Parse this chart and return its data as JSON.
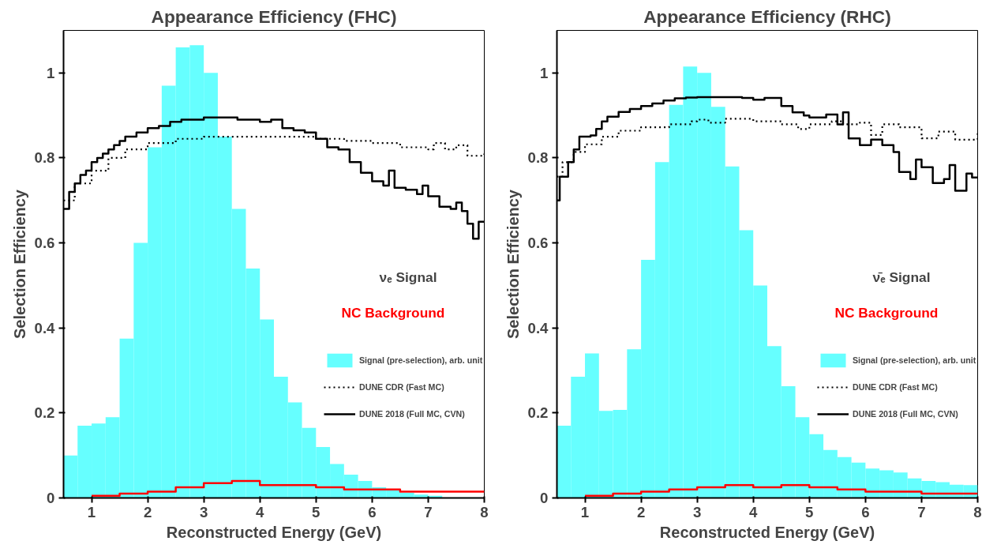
{
  "chart_data": [
    {
      "type": "step",
      "title": "Appearance Efficiency (FHC)",
      "xlabel": "Reconstructed Energy (GeV)",
      "ylabel": "Selection Efficiency",
      "legend_title": "νₑ Signal",
      "legend": "right",
      "grid": false,
      "xlim": [
        0.5,
        8
      ],
      "ylim": [
        0,
        1.1
      ],
      "xticks": [
        1,
        2,
        3,
        4,
        5,
        6,
        7,
        8
      ],
      "yticks": [
        0,
        0.2,
        0.4,
        0.6,
        0.8,
        1
      ],
      "bins": [
        0.5,
        0.75,
        1.0,
        1.25,
        1.5,
        1.75,
        2.0,
        2.25,
        2.5,
        2.75,
        3.0,
        3.25,
        3.5,
        3.75,
        4.0,
        4.25,
        4.5,
        4.75,
        5.0,
        5.25,
        5.5,
        5.75,
        6.0,
        6.25,
        6.5,
        6.75,
        7.0,
        7.25,
        7.5,
        7.75,
        8.0
      ],
      "series": [
        {
          "type": "histogram",
          "name": "Signal (pre-selection), arb. unit",
          "color": "#66ffff",
          "values": [
            0.1,
            0.17,
            0.175,
            0.19,
            0.375,
            0.6,
            0.825,
            0.97,
            1.06,
            1.065,
            1.0,
            0.85,
            0.68,
            0.54,
            0.42,
            0.285,
            0.225,
            0.165,
            0.12,
            0.08,
            0.055,
            0.04,
            0.025,
            0.018,
            0.012,
            0.008,
            0.005,
            null,
            null,
            null
          ]
        },
        {
          "name": "DUNE CDR (Fast MC)",
          "color": "#000000",
          "line_style": "dotted",
          "x": [
            0.5,
            0.7,
            1.0,
            1.3,
            1.6,
            2.0,
            2.5,
            3.0,
            3.5,
            4.0,
            4.5,
            5.0,
            5.5,
            6.0,
            6.5,
            7.0,
            7.1,
            7.3,
            7.5,
            7.7,
            8.0
          ],
          "values": [
            0.7,
            0.74,
            0.77,
            0.8,
            0.82,
            0.835,
            0.845,
            0.85,
            0.85,
            0.85,
            0.85,
            0.845,
            0.84,
            0.835,
            0.825,
            0.82,
            0.835,
            0.82,
            0.83,
            0.805,
            0.81
          ]
        },
        {
          "name": "DUNE 2018 (Full MC, CVN)",
          "color": "#000000",
          "line_style": "solid",
          "x": [
            0.5,
            0.6,
            0.7,
            0.8,
            0.9,
            1.0,
            1.1,
            1.2,
            1.3,
            1.4,
            1.5,
            1.6,
            1.8,
            2.0,
            2.2,
            2.4,
            2.6,
            2.8,
            3.0,
            3.2,
            3.4,
            3.6,
            3.8,
            4.0,
            4.2,
            4.4,
            4.6,
            4.8,
            5.0,
            5.2,
            5.4,
            5.6,
            5.8,
            6.0,
            6.2,
            6.3,
            6.4,
            6.6,
            6.8,
            6.9,
            7.0,
            7.2,
            7.4,
            7.5,
            7.6,
            7.7,
            7.8,
            7.9,
            8.0
          ],
          "values": [
            0.68,
            0.72,
            0.74,
            0.76,
            0.77,
            0.79,
            0.8,
            0.81,
            0.82,
            0.83,
            0.84,
            0.85,
            0.86,
            0.87,
            0.875,
            0.885,
            0.89,
            0.89,
            0.895,
            0.895,
            0.895,
            0.89,
            0.89,
            0.885,
            0.89,
            0.87,
            0.865,
            0.86,
            0.845,
            0.825,
            0.82,
            0.79,
            0.765,
            0.745,
            0.735,
            0.77,
            0.73,
            0.725,
            0.715,
            0.735,
            0.71,
            0.685,
            0.68,
            0.695,
            0.675,
            0.645,
            0.61,
            0.65,
            0.65
          ]
        },
        {
          "name": "NC Background",
          "color": "#ff0000",
          "line_style": "solid",
          "x": [
            1.0,
            1.5,
            2.0,
            2.5,
            3.0,
            3.5,
            4.0,
            4.5,
            5.0,
            5.5,
            6.0,
            6.5,
            7.0,
            7.5,
            8.0
          ],
          "values": [
            0.005,
            0.01,
            0.015,
            0.025,
            0.035,
            0.04,
            0.03,
            0.03,
            0.025,
            0.02,
            0.02,
            0.015,
            0.015,
            0.015,
            0.015
          ]
        }
      ]
    },
    {
      "type": "step",
      "title": "Appearance Efficiency (RHC)",
      "xlabel": "Reconstructed Energy (GeV)",
      "ylabel": "Selection Efficiency",
      "legend_title": "ν̄ₑ Signal",
      "legend": "right",
      "grid": false,
      "xlim": [
        0.5,
        8
      ],
      "ylim": [
        0,
        1.1
      ],
      "xticks": [
        1,
        2,
        3,
        4,
        5,
        6,
        7,
        8
      ],
      "yticks": [
        0,
        0.2,
        0.4,
        0.6,
        0.8,
        1
      ],
      "bins": [
        0.5,
        0.75,
        1.0,
        1.25,
        1.5,
        1.75,
        2.0,
        2.25,
        2.5,
        2.75,
        3.0,
        3.25,
        3.5,
        3.75,
        4.0,
        4.25,
        4.5,
        4.75,
        5.0,
        5.25,
        5.5,
        5.75,
        6.0,
        6.25,
        6.5,
        6.75,
        7.0,
        7.25,
        7.5,
        7.75,
        8.0
      ],
      "series": [
        {
          "type": "histogram",
          "name": "Signal (pre-selection), arb. unit",
          "color": "#66ffff",
          "values": [
            0.17,
            0.285,
            0.34,
            0.205,
            0.207,
            0.35,
            0.56,
            0.79,
            0.925,
            1.015,
            1.0,
            0.92,
            0.78,
            0.63,
            0.5,
            0.357,
            0.263,
            0.19,
            0.15,
            0.113,
            0.096,
            0.083,
            0.069,
            0.065,
            0.06,
            0.046,
            0.04,
            0.037,
            0.031,
            0.03
          ]
        },
        {
          "name": "DUNE CDR (Fast MC)",
          "color": "#000000",
          "line_style": "dotted",
          "x": [
            0.5,
            0.6,
            0.8,
            1.0,
            1.3,
            1.6,
            2.0,
            2.5,
            2.9,
            3.0,
            3.2,
            3.5,
            4.0,
            4.5,
            4.8,
            5.0,
            5.4,
            5.6,
            5.9,
            6.1,
            6.3,
            6.6,
            7.0,
            7.3,
            7.6,
            8.0
          ],
          "values": [
            0.756,
            0.79,
            0.814,
            0.832,
            0.85,
            0.864,
            0.872,
            0.879,
            0.886,
            0.89,
            0.883,
            0.892,
            0.886,
            0.879,
            0.868,
            0.879,
            0.886,
            0.879,
            0.883,
            0.854,
            0.879,
            0.872,
            0.846,
            0.862,
            0.843,
            0.861
          ]
        },
        {
          "name": "DUNE 2018 (Full MC, CVN)",
          "color": "#000000",
          "line_style": "solid",
          "x": [
            0.5,
            0.55,
            0.7,
            0.8,
            0.9,
            1.1,
            1.2,
            1.3,
            1.4,
            1.6,
            1.8,
            2.0,
            2.2,
            2.4,
            2.6,
            2.8,
            3.0,
            3.4,
            3.8,
            4.0,
            4.2,
            4.5,
            4.7,
            4.9,
            5.0,
            5.3,
            5.5,
            5.6,
            5.7,
            5.9,
            6.1,
            6.3,
            6.5,
            6.6,
            6.8,
            6.9,
            7.0,
            7.2,
            7.4,
            7.5,
            7.6,
            7.8,
            7.9,
            8.0
          ],
          "values": [
            0.7,
            0.756,
            0.79,
            0.82,
            0.85,
            0.853,
            0.868,
            0.886,
            0.897,
            0.908,
            0.915,
            0.922,
            0.928,
            0.935,
            0.94,
            0.942,
            0.943,
            0.943,
            0.941,
            0.937,
            0.941,
            0.922,
            0.907,
            0.9,
            0.895,
            0.902,
            0.879,
            0.907,
            0.846,
            0.83,
            0.843,
            0.83,
            0.814,
            0.767,
            0.75,
            0.796,
            0.778,
            0.741,
            0.75,
            0.783,
            0.723,
            0.763,
            0.754,
            0.754
          ]
        },
        {
          "name": "NC Background",
          "color": "#ff0000",
          "line_style": "solid",
          "x": [
            1.0,
            1.5,
            2.0,
            2.5,
            3.0,
            3.5,
            4.0,
            4.5,
            5.0,
            5.5,
            6.0,
            7.0,
            8.0
          ],
          "values": [
            0.005,
            0.01,
            0.015,
            0.02,
            0.025,
            0.03,
            0.025,
            0.03,
            0.025,
            0.02,
            0.015,
            0.01,
            0.01
          ]
        }
      ]
    }
  ]
}
